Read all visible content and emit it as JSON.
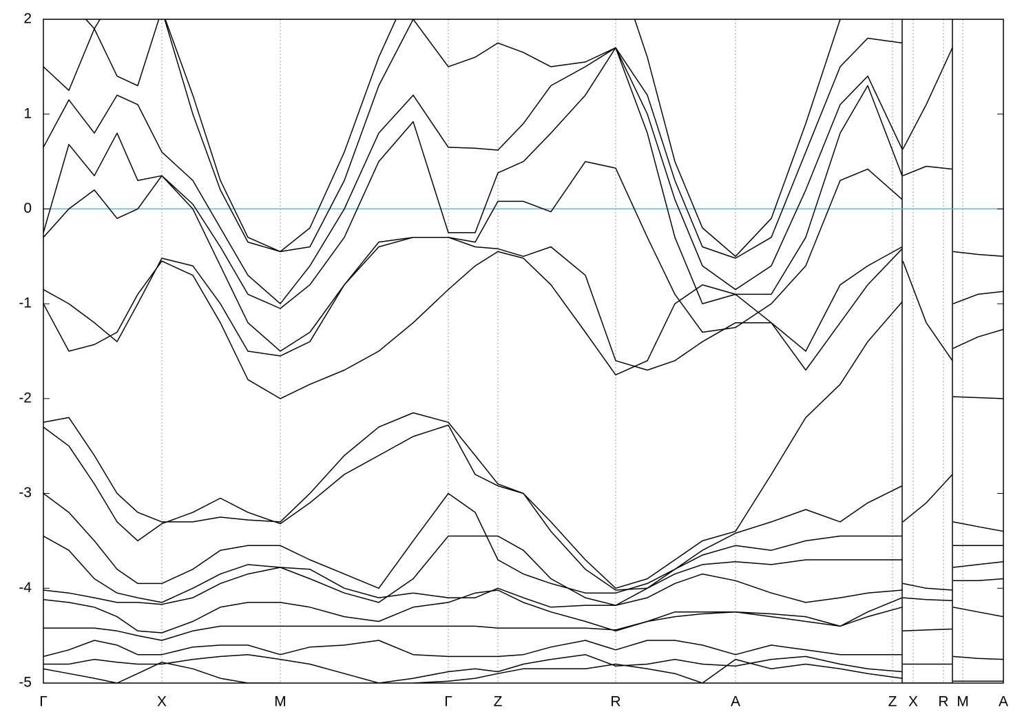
{
  "chart_data": {
    "type": "line",
    "line_color": "#000000",
    "grid": true,
    "reference_line": {
      "value": 0,
      "color": "#5fb4c9"
    },
    "xlim": [
      0,
      13.94
    ],
    "ylim": [
      -5,
      2
    ],
    "yticks": [
      -5,
      -4,
      -3,
      -2,
      -1,
      0,
      1,
      2
    ],
    "xticks": [
      {
        "value": 0,
        "label": "Γ"
      },
      {
        "value": 1.72,
        "label": "X"
      },
      {
        "value": 3.44,
        "label": "M"
      },
      {
        "value": 5.88,
        "label": "Γ"
      },
      {
        "value": 6.6,
        "label": "Z"
      },
      {
        "value": 8.31,
        "label": "R"
      },
      {
        "value": 10.05,
        "label": "A"
      },
      {
        "value": 12.33,
        "label": "Z"
      },
      {
        "value": 12.63,
        "label": "X"
      },
      {
        "value": 13.07,
        "label": "R"
      },
      {
        "value": 13.35,
        "label": "M"
      },
      {
        "value": 13.94,
        "label": "A"
      }
    ],
    "x": [
      0,
      0.37,
      0.74,
      1.07,
      1.37,
      1.72,
      2.17,
      2.57,
      2.97,
      3.44,
      3.87,
      4.37,
      4.87,
      5.37,
      5.88,
      6.27,
      6.6,
      6.97,
      7.37,
      7.87,
      8.31,
      8.77,
      9.17,
      9.57,
      10.05,
      10.57,
      11.07,
      11.57,
      11.97,
      12.47,
      12.47,
      12.48,
      12.82,
      13.2,
      13.2,
      13.21,
      13.57,
      13.94
    ],
    "series": [
      {
        "values": [
          2.5,
          2.2,
          1.9,
          2.3,
          2.6,
          2.1,
          1.2,
          0.3,
          -0.3,
          -0.45,
          -0.2,
          0.6,
          1.6,
          2.4,
          2.8,
          2.6,
          2.4,
          2.2,
          2.1,
          2.3,
          2.6,
          1.6,
          0.5,
          -0.2,
          -0.5,
          -0.1,
          0.9,
          2.0,
          2.3,
          2.5,
          null,
          2.5,
          2.4,
          2.3,
          null,
          2.4,
          2.4,
          2.4
        ]
      },
      {
        "values": [
          1.5,
          1.25,
          1.9,
          1.4,
          1.3,
          2.1,
          1.0,
          0.2,
          -0.35,
          -0.45,
          -0.4,
          0.3,
          1.3,
          2.0,
          1.5,
          1.6,
          1.75,
          1.65,
          1.5,
          1.55,
          1.7,
          1.2,
          0.3,
          -0.4,
          -0.52,
          -0.3,
          0.6,
          1.5,
          1.8,
          1.75,
          null,
          0.63,
          1.1,
          1.7,
          null,
          2.1,
          2.1,
          2.1
        ]
      },
      {
        "values": [
          0.65,
          1.15,
          0.8,
          1.2,
          1.1,
          0.6,
          0.3,
          -0.2,
          -0.7,
          -1.0,
          -0.6,
          0.0,
          0.8,
          1.2,
          0.65,
          0.64,
          0.62,
          0.9,
          1.3,
          1.5,
          1.7,
          1.0,
          0.1,
          -0.6,
          -0.85,
          -0.6,
          0.2,
          1.1,
          1.4,
          0.63,
          null,
          0.35,
          0.45,
          0.42,
          null,
          -0.45,
          -0.48,
          -0.5
        ]
      },
      {
        "values": [
          -0.25,
          0.68,
          0.35,
          0.8,
          0.3,
          0.35,
          0.05,
          -0.4,
          -0.9,
          -1.05,
          -0.8,
          -0.3,
          0.5,
          0.92,
          -0.25,
          -0.25,
          0.38,
          0.5,
          0.8,
          1.2,
          1.7,
          0.8,
          -0.3,
          -1.0,
          -0.9,
          -0.9,
          -0.3,
          0.8,
          1.3,
          0.35,
          null,
          -0.55,
          -1.2,
          -1.6,
          null,
          -1.0,
          -0.9,
          -0.87
        ]
      },
      {
        "values": [
          -0.3,
          0.0,
          0.2,
          -0.1,
          0.0,
          0.35,
          0.0,
          -0.6,
          -1.2,
          -1.5,
          -1.3,
          -0.8,
          -0.4,
          -0.3,
          -0.3,
          -0.35,
          0.08,
          0.08,
          -0.03,
          0.5,
          0.43,
          -0.3,
          -0.9,
          -1.3,
          -1.25,
          -1.0,
          -0.6,
          0.3,
          0.42,
          0.1,
          null,
          -3.3,
          -3.1,
          -2.8,
          null,
          -1.47,
          -1.35,
          -1.27
        ]
      },
      {
        "values": [
          -0.85,
          -1.0,
          -1.2,
          -1.4,
          -1.0,
          -0.52,
          -0.6,
          -1.0,
          -1.5,
          -1.55,
          -1.4,
          -0.8,
          -0.35,
          -0.3,
          -0.3,
          -0.4,
          -0.42,
          -0.5,
          -0.4,
          -0.7,
          -1.6,
          -1.7,
          -1.6,
          -1.4,
          -1.2,
          -1.2,
          -1.5,
          -0.8,
          -0.6,
          -0.4,
          null,
          -3.95,
          -4.0,
          -4.02,
          null,
          -1.98,
          -1.99,
          -2.0
        ]
      },
      {
        "values": [
          -1.0,
          -1.5,
          -1.43,
          -1.3,
          -0.9,
          -0.55,
          -0.7,
          -1.2,
          -1.8,
          -2.0,
          -1.85,
          -1.7,
          -1.5,
          -1.2,
          -0.85,
          -0.6,
          -0.45,
          -0.52,
          -0.8,
          -1.3,
          -1.75,
          -1.6,
          -1.0,
          -0.8,
          -0.9,
          -1.2,
          -1.7,
          -1.2,
          -0.8,
          -0.42,
          null,
          -4.1,
          -4.12,
          -4.13,
          null,
          -3.3,
          -3.35,
          -3.4
        ]
      },
      {
        "values": [
          -2.25,
          -2.2,
          -2.6,
          -3.0,
          -3.2,
          -3.3,
          -3.3,
          -3.25,
          -3.28,
          -3.3,
          -3.0,
          -2.6,
          -2.3,
          -2.15,
          -2.25,
          -2.6,
          -2.9,
          -3.0,
          -3.3,
          -3.7,
          -4.0,
          -3.9,
          -3.7,
          -3.5,
          -3.4,
          -2.8,
          -2.2,
          -1.85,
          -1.4,
          -0.98,
          null,
          -4.45,
          -4.44,
          -4.43,
          null,
          -3.55,
          -3.55,
          -3.55
        ]
      },
      {
        "values": [
          -2.3,
          -2.5,
          -2.9,
          -3.3,
          -3.5,
          -3.32,
          -3.2,
          -3.05,
          -3.2,
          -3.32,
          -3.1,
          -2.8,
          -2.6,
          -2.4,
          -2.28,
          -2.8,
          -2.92,
          -3.0,
          -3.4,
          -3.8,
          -4.02,
          -4.0,
          -3.8,
          -3.6,
          -3.42,
          -3.3,
          -3.17,
          -3.3,
          -3.1,
          -2.92,
          null,
          -4.8,
          -4.8,
          -4.8,
          null,
          -3.78,
          -3.75,
          -3.72
        ]
      },
      {
        "values": [
          -3.0,
          -3.2,
          -3.5,
          -3.8,
          -3.95,
          -3.95,
          -3.8,
          -3.6,
          -3.55,
          -3.55,
          -3.7,
          -3.85,
          -4.0,
          -3.5,
          -3.0,
          -3.2,
          -3.7,
          -3.85,
          -3.95,
          -4.05,
          -4.05,
          -3.95,
          -3.8,
          -3.65,
          -3.55,
          -3.6,
          -3.5,
          -3.45,
          -3.45,
          -3.45,
          null,
          -5.0,
          -5.0,
          -5.0,
          null,
          -3.92,
          -3.92,
          -3.9
        ]
      },
      {
        "values": [
          -3.45,
          -3.6,
          -3.9,
          -4.05,
          -4.1,
          -4.15,
          -4.0,
          -3.85,
          -3.75,
          -3.78,
          -3.9,
          -4.05,
          -4.15,
          -3.9,
          -3.45,
          -3.45,
          -3.45,
          -3.6,
          -3.9,
          -4.1,
          -4.18,
          -4.0,
          -3.85,
          -3.75,
          -3.72,
          -3.75,
          -3.7,
          -3.7,
          -3.7,
          -3.7,
          null,
          null,
          null,
          null,
          null,
          -4.2,
          -4.25,
          -4.3
        ]
      },
      {
        "values": [
          -4.02,
          -4.05,
          -4.1,
          -4.15,
          -4.15,
          -4.17,
          -4.1,
          -3.95,
          -3.85,
          -3.78,
          -3.8,
          -4.0,
          -4.1,
          -4.05,
          -4.1,
          -4.1,
          -4.0,
          -4.1,
          -4.2,
          -4.18,
          -4.18,
          -4.1,
          -3.95,
          -3.85,
          -3.92,
          -4.05,
          -4.15,
          -4.1,
          -4.05,
          -4.02,
          null,
          null,
          null,
          null,
          null,
          -4.72,
          -4.74,
          -4.75
        ]
      },
      {
        "values": [
          -4.12,
          -4.15,
          -4.2,
          -4.3,
          -4.45,
          -4.47,
          -4.35,
          -4.2,
          -4.15,
          -4.15,
          -4.2,
          -4.3,
          -4.35,
          -4.2,
          -4.15,
          -4.05,
          -4.02,
          -4.15,
          -4.25,
          -4.35,
          -4.45,
          -4.35,
          -4.3,
          -4.27,
          -4.25,
          -4.27,
          -4.3,
          -4.4,
          -4.25,
          -4.1,
          null,
          null,
          null,
          null,
          null,
          -4.98,
          -4.98,
          -4.98
        ]
      },
      {
        "values": [
          -4.42,
          -4.42,
          -4.42,
          -4.45,
          -4.5,
          -4.55,
          -4.45,
          -4.4,
          -4.4,
          -4.4,
          -4.4,
          -4.4,
          -4.4,
          -4.4,
          -4.4,
          -4.4,
          -4.42,
          -4.42,
          -4.42,
          -4.42,
          -4.44,
          -4.35,
          -4.25,
          -4.25,
          -4.25,
          -4.3,
          -4.35,
          -4.4,
          -4.3,
          -4.2,
          null,
          null,
          null,
          null,
          null,
          null,
          null,
          null
        ]
      },
      {
        "values": [
          -4.72,
          -4.65,
          -4.55,
          -4.6,
          -4.7,
          -4.7,
          -4.62,
          -4.6,
          -4.6,
          -4.7,
          -4.62,
          -4.6,
          -4.55,
          -4.7,
          -4.72,
          -4.72,
          -4.72,
          -4.7,
          -4.62,
          -4.55,
          -4.65,
          -4.55,
          -4.55,
          -4.6,
          -4.7,
          -4.6,
          -4.65,
          -4.7,
          -4.7,
          -4.7,
          null,
          null,
          null,
          null,
          null,
          null,
          null,
          null
        ]
      },
      {
        "values": [
          -4.8,
          -4.8,
          -4.75,
          -4.78,
          -4.8,
          -4.8,
          -4.75,
          -4.72,
          -4.7,
          -4.75,
          -4.8,
          -4.9,
          -5.0,
          -4.95,
          -4.88,
          -4.85,
          -4.88,
          -4.8,
          -4.75,
          -4.7,
          -4.82,
          -4.8,
          -4.75,
          -4.8,
          -4.82,
          -4.75,
          -4.72,
          -4.8,
          -4.85,
          -4.88,
          null,
          null,
          null,
          null,
          null,
          null,
          null,
          null
        ]
      },
      {
        "values": [
          -4.85,
          -4.9,
          -4.95,
          -5.0,
          -4.9,
          -4.78,
          -4.85,
          -4.95,
          -5.0,
          -5.0,
          -5.1,
          -5.1,
          -5.05,
          -5.0,
          -4.98,
          -4.95,
          -4.9,
          -4.85,
          -4.85,
          -4.85,
          -4.8,
          -4.85,
          -4.9,
          -5.0,
          -4.75,
          -4.85,
          -4.8,
          -4.85,
          -4.9,
          -4.95,
          null,
          null,
          null,
          null,
          null,
          null,
          null,
          null
        ]
      }
    ]
  }
}
